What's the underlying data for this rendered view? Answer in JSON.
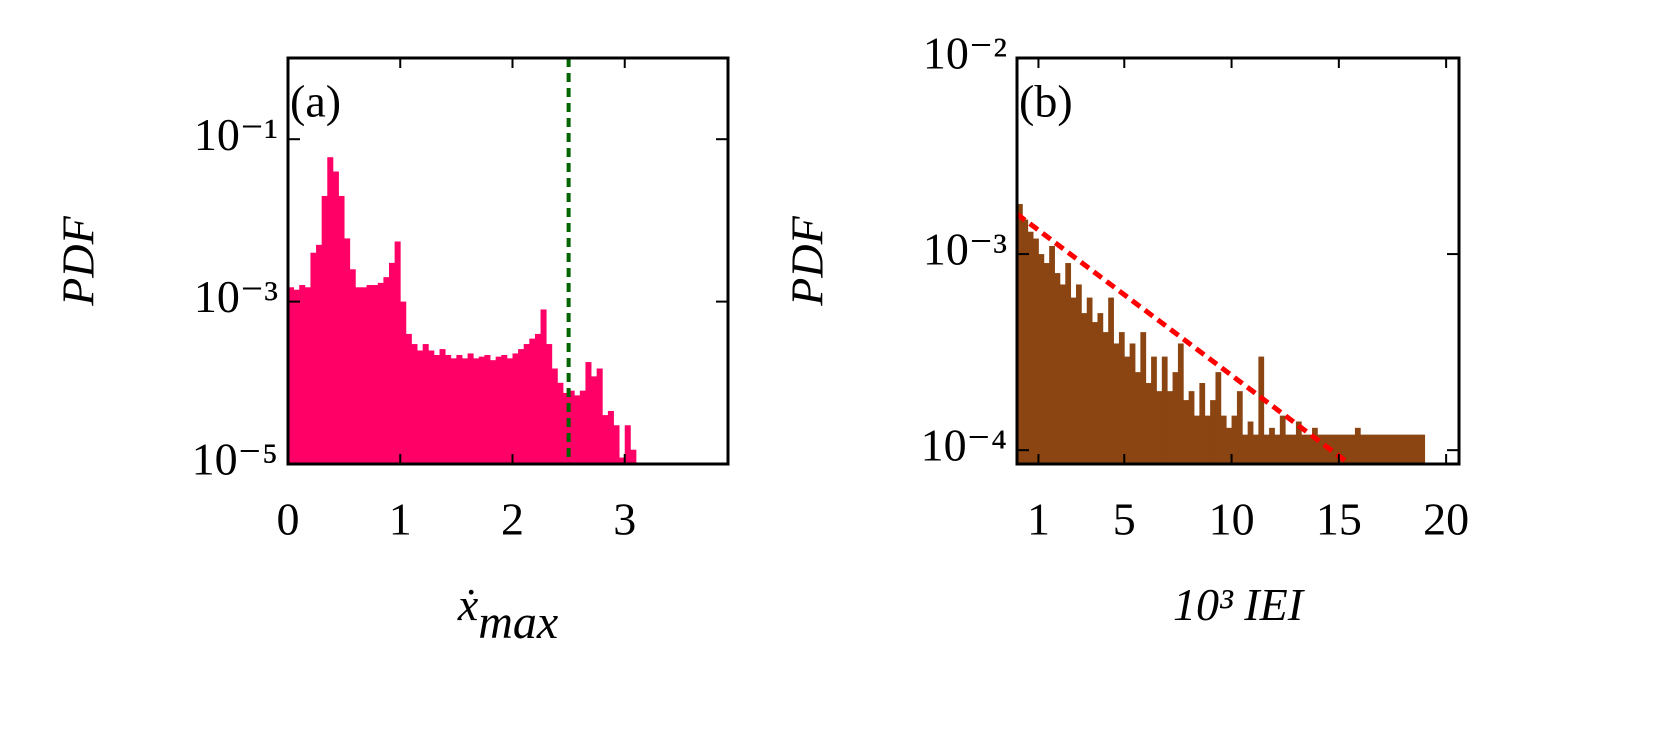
{
  "chart_data": [
    {
      "type": "histogram",
      "panel_label": "(a)",
      "ylabel": "PDF",
      "xlabel": "ẋ",
      "xlabel_sub": "max",
      "color": "#ff0066",
      "log_y": true,
      "xlim": [
        0,
        3.92
      ],
      "ylim": [
        1e-05,
        1
      ],
      "xticks": [
        0,
        1,
        2,
        3
      ],
      "yticks": [
        {
          "value": 1e-05,
          "label": "10⁻⁵"
        },
        {
          "value": 0.001,
          "label": "10⁻³"
        },
        {
          "value": 0.1,
          "label": "10⁻¹"
        }
      ],
      "bins": [
        0,
        0.05,
        0.1,
        0.15,
        0.2,
        0.25,
        0.3,
        0.35,
        0.4,
        0.45,
        0.5,
        0.55,
        0.6,
        0.65,
        0.7,
        0.75,
        0.8,
        0.85,
        0.9,
        0.95,
        1.0,
        1.05,
        1.1,
        1.15,
        1.2,
        1.25,
        1.3,
        1.35,
        1.4,
        1.45,
        1.5,
        1.55,
        1.6,
        1.65,
        1.7,
        1.75,
        1.8,
        1.85,
        1.9,
        1.95,
        2.0,
        2.05,
        2.1,
        2.15,
        2.2,
        2.25,
        2.3,
        2.35,
        2.4,
        2.45,
        2.5,
        2.55,
        2.6,
        2.65,
        2.7,
        2.75,
        2.8,
        2.85,
        2.9,
        2.95,
        3.0,
        3.05,
        3.1
      ],
      "values": [
        0.0015,
        0.0014,
        0.0016,
        0.0015,
        0.004,
        0.005,
        0.02,
        0.06,
        0.04,
        0.02,
        0.006,
        0.0025,
        0.0015,
        0.0015,
        0.0016,
        0.0016,
        0.0017,
        0.002,
        0.003,
        0.0055,
        0.001,
        0.0004,
        0.0003,
        0.00025,
        0.0003,
        0.00025,
        0.00022,
        0.00026,
        0.00022,
        0.0002,
        0.00022,
        0.0002,
        0.00023,
        0.0002,
        0.00021,
        0.00022,
        0.00019,
        0.00021,
        0.00022,
        0.0002,
        0.00023,
        0.00026,
        0.0003,
        0.00035,
        0.0004,
        0.0008,
        0.0003,
        0.00015,
        0.0001,
        7.5e-05,
        8e-05,
        7e-05,
        8e-05,
        0.00018,
        0.00012,
        0.00015,
        4e-05,
        4.5e-05,
        3e-05,
        1.2e-05,
        3e-05,
        1.5e-05
      ],
      "reference_line": {
        "x": 2.5,
        "color": "#006400"
      }
    },
    {
      "type": "histogram",
      "panel_label": "(b)",
      "ylabel": "PDF",
      "xlabel": "10³ IEI",
      "color": "#8b4513",
      "log_y": true,
      "xlim": [
        0,
        20.6
      ],
      "ylim": [
        8.5e-05,
        0.01
      ],
      "xticks": [
        1,
        5,
        10,
        15,
        20
      ],
      "yticks": [
        {
          "value": 0.0001,
          "label": "10⁻⁴"
        },
        {
          "value": 0.001,
          "label": "10⁻³"
        },
        {
          "value": 0.01,
          "label": "10⁻²"
        }
      ],
      "bins": [
        0,
        0.25,
        0.5,
        0.75,
        1,
        1.25,
        1.5,
        1.75,
        2,
        2.25,
        2.5,
        2.75,
        3,
        3.25,
        3.5,
        3.75,
        4,
        4.25,
        4.5,
        4.75,
        5,
        5.25,
        5.5,
        5.75,
        6,
        6.25,
        6.5,
        6.75,
        7,
        7.25,
        7.5,
        7.75,
        8,
        8.25,
        8.5,
        8.75,
        9,
        9.25,
        9.5,
        9.75,
        10,
        10.25,
        10.5,
        10.75,
        11,
        11.25,
        11.5,
        11.75,
        12,
        12.25,
        12.5,
        12.75,
        13,
        13.25,
        13.5,
        13.75,
        14,
        14.25,
        14.5,
        14.75,
        15,
        15.25,
        15.5,
        15.75,
        16,
        16.25,
        16.5,
        16.75,
        17,
        17.25,
        17.5,
        17.75,
        18,
        18.25,
        18.5,
        18.75,
        19
      ],
      "values": [
        0.0018,
        0.0015,
        0.0013,
        0.0012,
        0.001,
        0.0009,
        0.0011,
        0.0008,
        0.0007,
        0.0009,
        0.0006,
        0.0007,
        0.0005,
        0.0006,
        0.00045,
        0.0005,
        0.0004,
        0.0006,
        0.00035,
        0.0004,
        0.0003,
        0.00035,
        0.00025,
        0.0004,
        0.00022,
        0.0003,
        0.0002,
        0.0003,
        0.0002,
        0.00025,
        0.00035,
        0.00018,
        0.0002,
        0.00015,
        0.00022,
        0.00015,
        0.00018,
        0.00025,
        0.00015,
        0.00013,
        0.00015,
        0.0002,
        0.00012,
        0.00014,
        0.00012,
        0.0003,
        0.00012,
        0.00013,
        0.00012,
        0.00015,
        0.00012,
        0.00012,
        0.00014,
        0.00012,
        0.00012,
        0.00013,
        0.00012,
        0.00012,
        0.00012,
        0.00012,
        0.00012,
        0.00012,
        0.00012,
        0.00013,
        0.00012,
        0.00012,
        0.00012,
        0.00012,
        0.00012,
        0.00012,
        0.00012,
        0.00012,
        0.00012,
        0.00012,
        0.00012,
        0.00012
      ],
      "fit": {
        "x": [
          0,
          15.5
        ],
        "values": [
          0.0016,
          8.5e-05
        ],
        "color": "#ff0000"
      }
    }
  ]
}
